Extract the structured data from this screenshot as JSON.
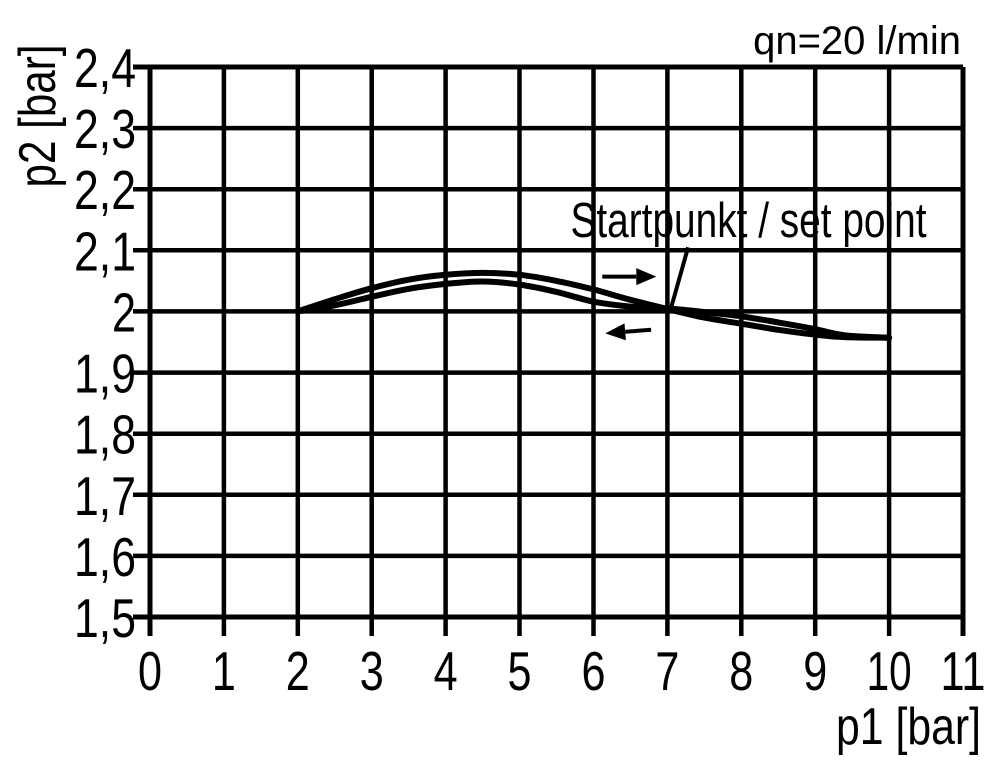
{
  "page": {
    "background_color": "#ffffff",
    "ink_color": "#000000"
  },
  "chart_data": {
    "type": "line",
    "title": "",
    "flow_annotation": "qn=20 l/min",
    "xlabel": "p1 [bar]",
    "ylabel": "p2 [bar]",
    "xlim": [
      0,
      11
    ],
    "ylim": [
      1.5,
      2.4
    ],
    "x_ticks": [
      0,
      1,
      2,
      3,
      4,
      5,
      6,
      7,
      8,
      9,
      10,
      11
    ],
    "x_tick_labels": [
      "0",
      "1",
      "2",
      "3",
      "4",
      "5",
      "6",
      "7",
      "8",
      "9",
      "10",
      "11"
    ],
    "y_ticks": [
      2.4,
      2.3,
      2.2,
      2.1,
      2.0,
      1.9,
      1.8,
      1.7,
      1.6,
      1.5
    ],
    "y_tick_labels": [
      "2,4",
      "2,3",
      "2,2",
      "2,1",
      "2",
      "1,9",
      "1,8",
      "1,7",
      "1,6",
      "1,5"
    ],
    "grid": {
      "x_spacing": 1,
      "y_spacing": 0.1,
      "color": "#000000",
      "visible": true
    },
    "legend": null,
    "series": [
      {
        "id": "forward",
        "name": "upper branch (direction arrow pointing right)",
        "points": [
          [
            2,
            2.0
          ],
          [
            2.5,
            2.02
          ],
          [
            3,
            2.038
          ],
          [
            3.5,
            2.052
          ],
          [
            4,
            2.06
          ],
          [
            4.5,
            2.063
          ],
          [
            5,
            2.06
          ],
          [
            5.5,
            2.05
          ],
          [
            6,
            2.036
          ],
          [
            6.5,
            2.019
          ],
          [
            7,
            2.004
          ],
          [
            7.5,
            1.99
          ],
          [
            8,
            1.98
          ],
          [
            8.5,
            1.97
          ],
          [
            9,
            1.962
          ],
          [
            9.4,
            1.958
          ],
          [
            10,
            1.957
          ]
        ]
      },
      {
        "id": "return",
        "name": "lower branch (direction arrow pointing left)",
        "points": [
          [
            2,
            2.0
          ],
          [
            2.5,
            2.01
          ],
          [
            3,
            2.024
          ],
          [
            3.5,
            2.037
          ],
          [
            4,
            2.045
          ],
          [
            4.5,
            2.049
          ],
          [
            5,
            2.044
          ],
          [
            5.5,
            2.032
          ],
          [
            6,
            2.016
          ],
          [
            6.5,
            2.008
          ],
          [
            7,
            2.005
          ],
          [
            7.5,
            1.999
          ],
          [
            8,
            1.992
          ],
          [
            8.5,
            1.982
          ],
          [
            9,
            1.971
          ],
          [
            9.4,
            1.961
          ],
          [
            10,
            1.957
          ]
        ]
      }
    ],
    "annotations": {
      "set_point_label": "Startpunkt / set point",
      "set_point": [
        7.05,
        2.006
      ],
      "set_point_label_anchor": [
        5.69,
        2.122
      ],
      "leader_from": [
        7.28,
        2.105
      ],
      "arrows": [
        {
          "id": "forward",
          "direction": "right",
          "tail": [
            6.12,
            2.057
          ],
          "tip": [
            6.85,
            2.057
          ]
        },
        {
          "id": "return",
          "direction": "left",
          "tail": [
            6.78,
            1.97
          ],
          "tip": [
            6.16,
            1.964
          ]
        }
      ]
    }
  }
}
